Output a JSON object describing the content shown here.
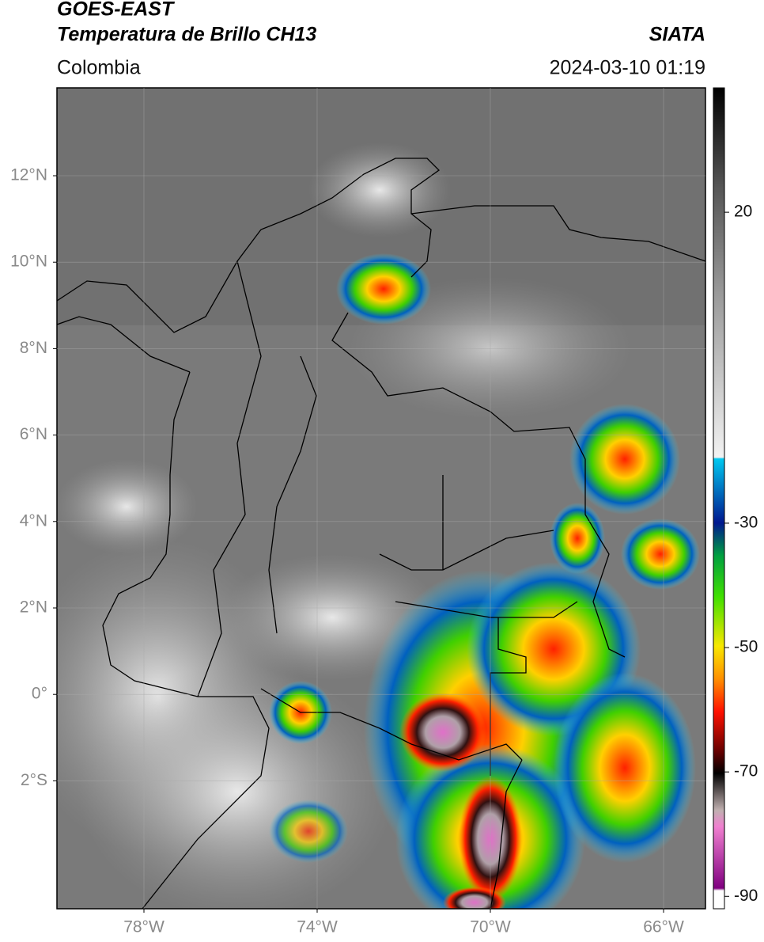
{
  "header": {
    "title": "GOES-EAST",
    "subtitle": "Temperatura de Brillo CH13",
    "region": "Colombia",
    "source": "SIATA",
    "datetime": "2024-03-10 01:19"
  },
  "map": {
    "lat_ticks": [
      "12°N",
      "10°N",
      "8°N",
      "6°N",
      "4°N",
      "2°N",
      "0°",
      "2°S"
    ],
    "lon_ticks": [
      "78°W",
      "74°W",
      "70°W",
      "66°W"
    ]
  },
  "colorbar": {
    "lim": [
      -92,
      40
    ],
    "ticks": [
      20,
      -30,
      -50,
      -70,
      -90
    ]
  }
}
